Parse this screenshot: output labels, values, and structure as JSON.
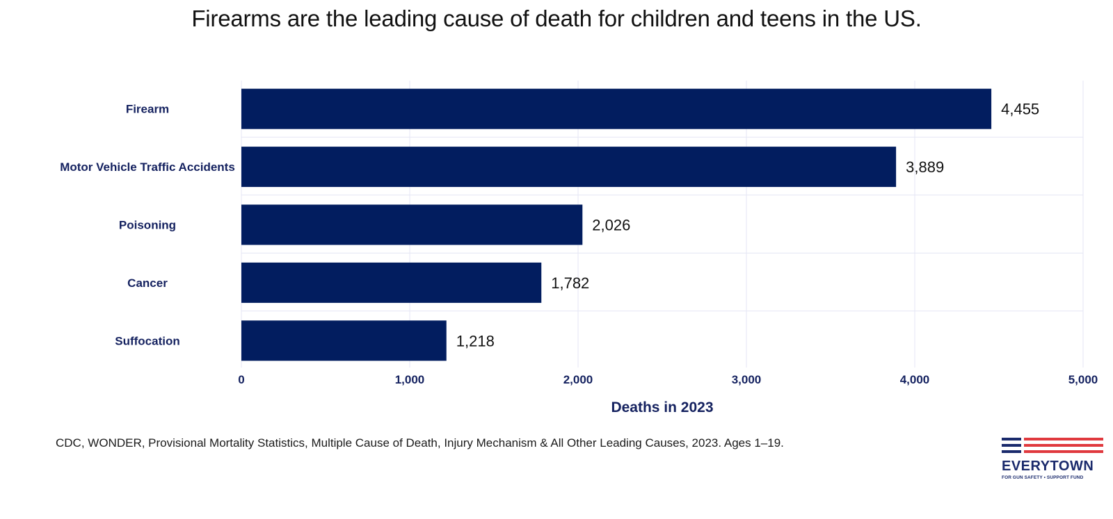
{
  "title": "Firearms are the leading cause of death for children and teens in the US.",
  "source": "CDC, WONDER, Provisional Mortality Statistics, Multiple Cause of Death, Injury Mechanism & All Other Leading Causes, 2023. Ages 1–19.",
  "logo": {
    "wordmark": "EVERYTOWN",
    "tagline": "FOR GUN SAFETY • SUPPORT FUND"
  },
  "colors": {
    "bar": "#021d5f",
    "label": "#14215f",
    "grid": "#e4e6f4",
    "value_text": "#111111",
    "stripe_red": "#e0393e",
    "stripe_blue": "#1a2a6c"
  },
  "chart_data": {
    "type": "bar",
    "orientation": "horizontal",
    "categories": [
      "Firearm",
      "Motor Vehicle Traffic Accidents",
      "Poisoning",
      "Cancer",
      "Suffocation"
    ],
    "values": [
      4455,
      3889,
      2026,
      1782,
      1218
    ],
    "value_labels": [
      "4,455",
      "3,889",
      "2,026",
      "1,782",
      "1,218"
    ],
    "xlabel": "Deaths in 2023",
    "ylabel": "",
    "xlim": [
      0,
      5000
    ],
    "ticks": [
      0,
      1000,
      2000,
      3000,
      4000,
      5000
    ],
    "tick_labels": [
      "0",
      "1,000",
      "2,000",
      "3,000",
      "4,000",
      "5,000"
    ],
    "grid": true
  }
}
